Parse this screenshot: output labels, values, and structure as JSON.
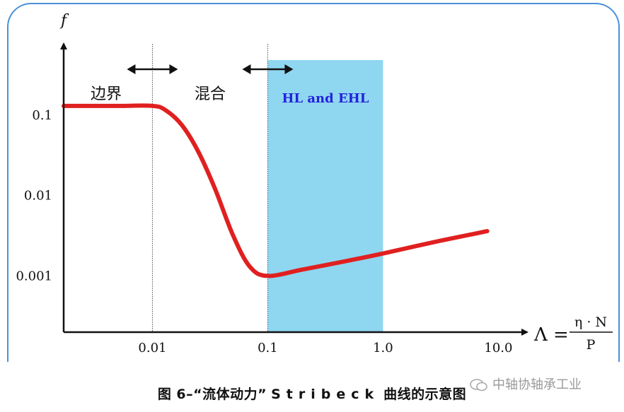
{
  "chart_data": {
    "type": "line",
    "y_axis_symbol": "f",
    "x_axis_formula": {
      "lhs": "Λ =",
      "numerator": "η · N",
      "denominator": "P"
    },
    "x_ticks": [
      "0.01",
      "0.1",
      "1.0",
      "10.0"
    ],
    "y_ticks": [
      "0.1",
      "0.01",
      "0.001"
    ],
    "x_scale": "log",
    "y_scale": "log",
    "xlim": [
      0.0017,
      17
    ],
    "ylim": [
      0.0002,
      0.8
    ],
    "regions": [
      {
        "label": "边界",
        "from": 0.0017,
        "to": 0.01
      },
      {
        "label": "混合",
        "from": 0.01,
        "to": 0.1
      },
      {
        "label": "HL and EHL",
        "from": 0.1,
        "to": 1.0,
        "color": "#8fd6f0",
        "label_color": "#2222dd"
      }
    ],
    "series": [
      {
        "color": "#e02020",
        "x": [
          0.0017,
          0.005,
          0.01,
          0.013,
          0.018,
          0.025,
          0.035,
          0.05,
          0.07,
          0.1,
          0.2,
          0.5,
          1.0,
          3.0,
          8.0
        ],
        "y": [
          0.13,
          0.13,
          0.13,
          0.115,
          0.075,
          0.035,
          0.012,
          0.0032,
          0.0013,
          0.001,
          0.0012,
          0.00155,
          0.0019,
          0.0027,
          0.0036
        ]
      }
    ]
  },
  "caption": {
    "prefix": "图 6–“流体动力”",
    "latin": "Stribeck",
    "suffix": "曲线的示意图"
  },
  "watermark": {
    "text": "中轴协轴承工业"
  }
}
